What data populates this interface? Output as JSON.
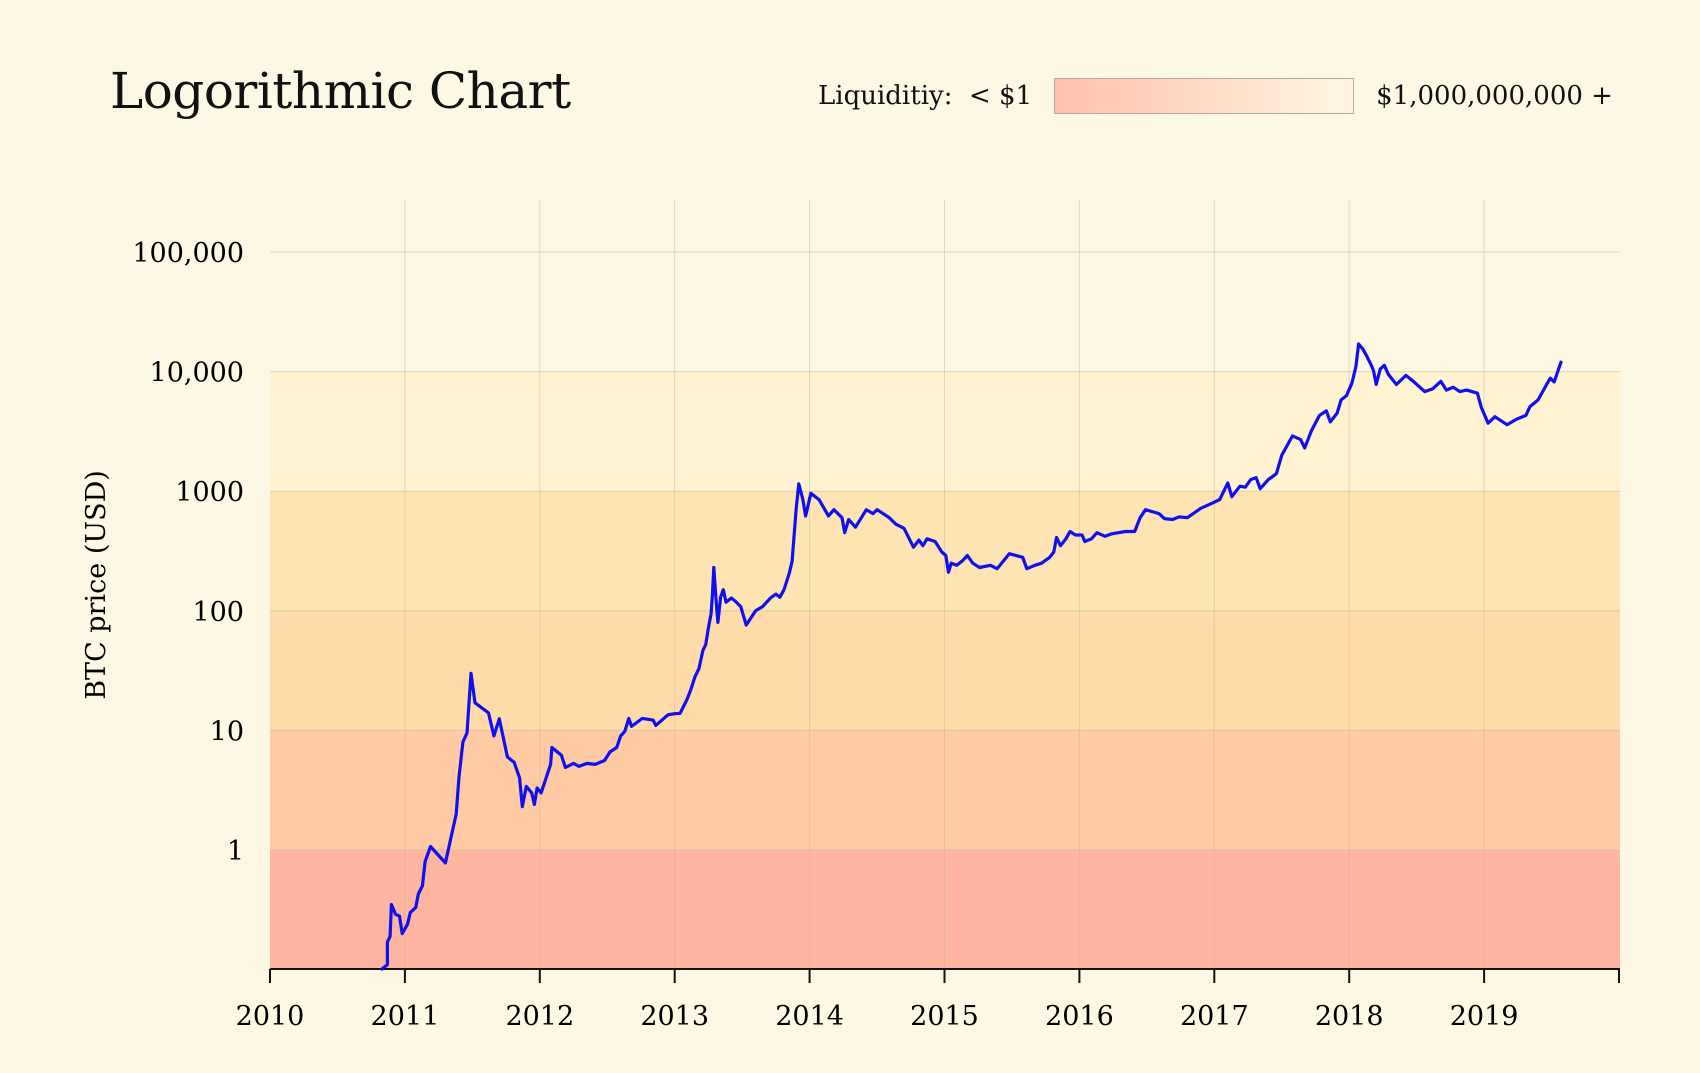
{
  "chart_data": {
    "type": "line",
    "title": "Logorithmic Chart",
    "ylabel": "BTC price (USD)",
    "xlabel": "",
    "yscale": "log",
    "ylim": [
      0.1,
      300000
    ],
    "xlim": [
      2010,
      2020
    ],
    "grid": true,
    "x_ticks": [
      "2010",
      "2011",
      "2012",
      "2013",
      "2014",
      "2015",
      "2016",
      "2017",
      "2018",
      "2019"
    ],
    "y_ticks": [
      {
        "value": 1,
        "label": "1"
      },
      {
        "value": 10,
        "label": "10"
      },
      {
        "value": 100,
        "label": "100"
      },
      {
        "value": 1000,
        "label": "1000"
      },
      {
        "value": 10000,
        "label": "10,000"
      },
      {
        "value": 100000,
        "label": "100,000"
      }
    ],
    "legend": {
      "label": "Liquiditiy:",
      "min_label": "< $1",
      "max_label": "$1,000,000,000 +",
      "placement": "top-right",
      "color_low": "#ffbfa8",
      "color_high": "#fff6e0"
    },
    "bands": [
      {
        "from": 0.1,
        "to": 1,
        "color": "#ffb5a0"
      },
      {
        "from": 1,
        "to": 10,
        "color": "#fecba4"
      },
      {
        "from": 10,
        "to": 100,
        "color": "#fedba8"
      },
      {
        "from": 100,
        "to": 1000,
        "color": "#fee4b2"
      },
      {
        "from": 1000,
        "to": 10000,
        "color": "#fff3d2"
      },
      {
        "from": 10000,
        "to": 300000,
        "color": "#fdf8e4"
      }
    ],
    "series": [
      {
        "color": "#1010ee",
        "points": [
          [
            2010.83,
            0.1
          ],
          [
            2010.87,
            0.11
          ],
          [
            2010.87,
            0.17
          ],
          [
            2010.89,
            0.19
          ],
          [
            2010.9,
            0.35
          ],
          [
            2010.93,
            0.29
          ],
          [
            2010.96,
            0.28
          ],
          [
            2010.98,
            0.2
          ],
          [
            2011.02,
            0.24
          ],
          [
            2011.04,
            0.3
          ],
          [
            2011.08,
            0.33
          ],
          [
            2011.1,
            0.43
          ],
          [
            2011.13,
            0.5
          ],
          [
            2011.15,
            0.8
          ],
          [
            2011.19,
            1.07
          ],
          [
            2011.3,
            0.78
          ],
          [
            2011.38,
            2.0
          ],
          [
            2011.4,
            4.0
          ],
          [
            2011.43,
            8.0
          ],
          [
            2011.46,
            9.5
          ],
          [
            2011.49,
            30
          ],
          [
            2011.52,
            17
          ],
          [
            2011.62,
            14
          ],
          [
            2011.66,
            9
          ],
          [
            2011.7,
            12.5
          ],
          [
            2011.76,
            6.0
          ],
          [
            2011.81,
            5.4
          ],
          [
            2011.85,
            4.0
          ],
          [
            2011.87,
            2.3
          ],
          [
            2011.9,
            3.4
          ],
          [
            2011.94,
            3.0
          ],
          [
            2011.96,
            2.4
          ],
          [
            2011.98,
            3.3
          ],
          [
            2012.01,
            3.0
          ],
          [
            2012.04,
            3.8
          ],
          [
            2012.08,
            5.2
          ],
          [
            2012.09,
            7.2
          ],
          [
            2012.16,
            6.2
          ],
          [
            2012.19,
            4.9
          ],
          [
            2012.25,
            5.3
          ],
          [
            2012.29,
            5.0
          ],
          [
            2012.35,
            5.3
          ],
          [
            2012.41,
            5.2
          ],
          [
            2012.48,
            5.6
          ],
          [
            2012.52,
            6.6
          ],
          [
            2012.57,
            7.2
          ],
          [
            2012.6,
            9.0
          ],
          [
            2012.63,
            9.8
          ],
          [
            2012.66,
            12.6
          ],
          [
            2012.68,
            10.8
          ],
          [
            2012.76,
            12.6
          ],
          [
            2012.84,
            12.2
          ],
          [
            2012.86,
            11.0
          ],
          [
            2012.95,
            13.5
          ],
          [
            2013.0,
            13.8
          ],
          [
            2013.04,
            13.9
          ],
          [
            2013.09,
            18.0
          ],
          [
            2013.12,
            22
          ],
          [
            2013.15,
            28
          ],
          [
            2013.18,
            33
          ],
          [
            2013.21,
            47
          ],
          [
            2013.23,
            52
          ],
          [
            2013.25,
            72
          ],
          [
            2013.27,
            95
          ],
          [
            2013.28,
            140
          ],
          [
            2013.29,
            230
          ],
          [
            2013.31,
            110
          ],
          [
            2013.32,
            80
          ],
          [
            2013.34,
            130
          ],
          [
            2013.36,
            150
          ],
          [
            2013.38,
            118
          ],
          [
            2013.42,
            128
          ],
          [
            2013.45,
            120
          ],
          [
            2013.49,
            108
          ],
          [
            2013.53,
            76
          ],
          [
            2013.6,
            100
          ],
          [
            2013.65,
            108
          ],
          [
            2013.71,
            128
          ],
          [
            2013.75,
            138
          ],
          [
            2013.78,
            130
          ],
          [
            2013.81,
            150
          ],
          [
            2013.85,
            208
          ],
          [
            2013.87,
            260
          ],
          [
            2013.9,
            700
          ],
          [
            2013.92,
            1150
          ],
          [
            2013.95,
            850
          ],
          [
            2013.97,
            620
          ],
          [
            2014.01,
            960
          ],
          [
            2014.07,
            850
          ],
          [
            2014.14,
            620
          ],
          [
            2014.18,
            700
          ],
          [
            2014.24,
            600
          ],
          [
            2014.26,
            450
          ],
          [
            2014.29,
            580
          ],
          [
            2014.34,
            500
          ],
          [
            2014.42,
            700
          ],
          [
            2014.47,
            650
          ],
          [
            2014.5,
            700
          ],
          [
            2014.59,
            600
          ],
          [
            2014.64,
            530
          ],
          [
            2014.7,
            490
          ],
          [
            2014.77,
            340
          ],
          [
            2014.81,
            390
          ],
          [
            2014.84,
            350
          ],
          [
            2014.87,
            400
          ],
          [
            2014.93,
            380
          ],
          [
            2014.98,
            310
          ],
          [
            2015.01,
            290
          ],
          [
            2015.03,
            210
          ],
          [
            2015.05,
            250
          ],
          [
            2015.09,
            240
          ],
          [
            2015.13,
            260
          ],
          [
            2015.17,
            290
          ],
          [
            2015.21,
            250
          ],
          [
            2015.26,
            230
          ],
          [
            2015.34,
            240
          ],
          [
            2015.39,
            225
          ],
          [
            2015.48,
            300
          ],
          [
            2015.58,
            280
          ],
          [
            2015.61,
            225
          ],
          [
            2015.67,
            240
          ],
          [
            2015.72,
            250
          ],
          [
            2015.78,
            280
          ],
          [
            2015.81,
            310
          ],
          [
            2015.83,
            410
          ],
          [
            2015.86,
            350
          ],
          [
            2015.9,
            400
          ],
          [
            2015.93,
            460
          ],
          [
            2015.97,
            430
          ],
          [
            2016.02,
            430
          ],
          [
            2016.04,
            380
          ],
          [
            2016.09,
            400
          ],
          [
            2016.13,
            450
          ],
          [
            2016.19,
            420
          ],
          [
            2016.24,
            440
          ],
          [
            2016.34,
            460
          ],
          [
            2016.41,
            460
          ],
          [
            2016.45,
            600
          ],
          [
            2016.49,
            700
          ],
          [
            2016.59,
            650
          ],
          [
            2016.63,
            590
          ],
          [
            2016.69,
            580
          ],
          [
            2016.74,
            610
          ],
          [
            2016.8,
            600
          ],
          [
            2016.9,
            720
          ],
          [
            2016.98,
            790
          ],
          [
            2017.04,
            850
          ],
          [
            2017.1,
            1170
          ],
          [
            2017.13,
            900
          ],
          [
            2017.19,
            1100
          ],
          [
            2017.23,
            1080
          ],
          [
            2017.27,
            1250
          ],
          [
            2017.31,
            1300
          ],
          [
            2017.34,
            1050
          ],
          [
            2017.4,
            1250
          ],
          [
            2017.46,
            1400
          ],
          [
            2017.5,
            2000
          ],
          [
            2017.58,
            2900
          ],
          [
            2017.64,
            2700
          ],
          [
            2017.67,
            2300
          ],
          [
            2017.72,
            3200
          ],
          [
            2017.78,
            4300
          ],
          [
            2017.83,
            4700
          ],
          [
            2017.86,
            3800
          ],
          [
            2017.91,
            4500
          ],
          [
            2017.94,
            5800
          ],
          [
            2017.98,
            6300
          ],
          [
            2018.02,
            8000
          ],
          [
            2018.05,
            11000
          ],
          [
            2018.07,
            17000
          ],
          [
            2018.1,
            15500
          ],
          [
            2018.13,
            13500
          ],
          [
            2018.16,
            11500
          ],
          [
            2018.18,
            10200
          ],
          [
            2018.2,
            7800
          ],
          [
            2018.23,
            10500
          ],
          [
            2018.26,
            11300
          ],
          [
            2018.29,
            9500
          ],
          [
            2018.35,
            7800
          ],
          [
            2018.42,
            9300
          ],
          [
            2018.48,
            8200
          ],
          [
            2018.56,
            6800
          ],
          [
            2018.62,
            7200
          ],
          [
            2018.68,
            8300
          ],
          [
            2018.72,
            7000
          ],
          [
            2018.77,
            7400
          ],
          [
            2018.82,
            6800
          ],
          [
            2018.87,
            7000
          ],
          [
            2018.95,
            6600
          ],
          [
            2018.98,
            5000
          ],
          [
            2019.03,
            3700
          ],
          [
            2019.08,
            4200
          ],
          [
            2019.17,
            3600
          ],
          [
            2019.24,
            4000
          ],
          [
            2019.31,
            4300
          ],
          [
            2019.34,
            5100
          ],
          [
            2019.4,
            5800
          ],
          [
            2019.44,
            7000
          ],
          [
            2019.49,
            8800
          ],
          [
            2019.52,
            8200
          ],
          [
            2019.57,
            12000
          ]
        ]
      }
    ]
  }
}
